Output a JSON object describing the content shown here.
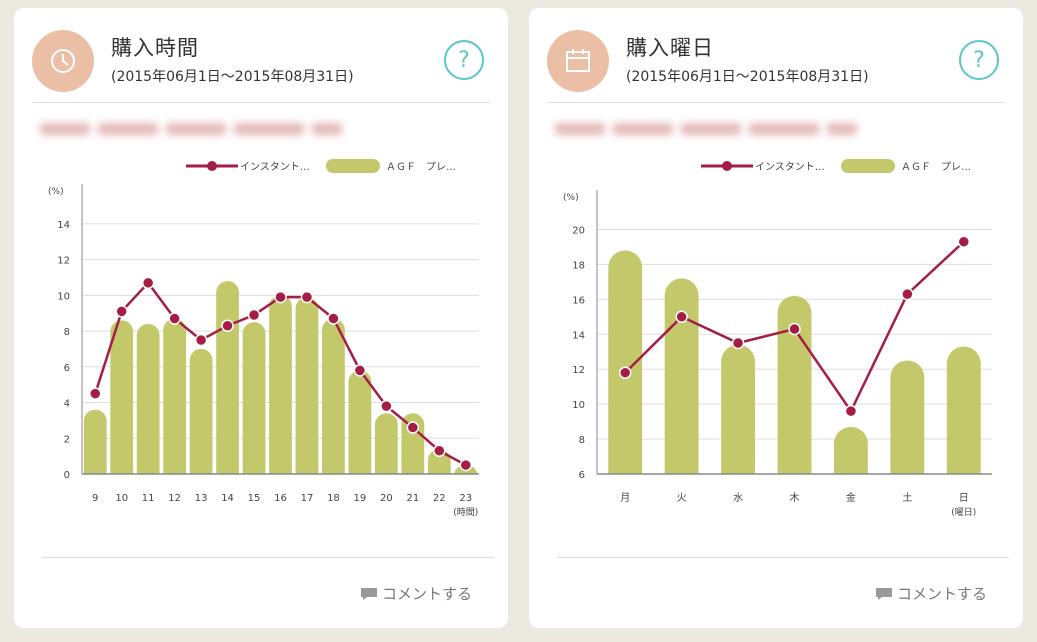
{
  "cards": [
    {
      "title": "購入時間",
      "period": "(2015年06月1日～2015年08月31日)",
      "comment_label": "コメントする"
    },
    {
      "title": "購入曜日",
      "period": "(2015年06月1日～2015年08月31日)",
      "comment_label": "コメントする"
    }
  ],
  "colors": {
    "bar": "#c3c96a",
    "line": "#a51d45",
    "grid": "#dddddd",
    "accent": "#5cc6c9",
    "icon_bg": "#ebbea6"
  },
  "chart_data": [
    {
      "type": "bar",
      "y_unit": "(%)",
      "x_unit": "(時間)",
      "categories": [
        "9",
        "10",
        "11",
        "12",
        "13",
        "14",
        "15",
        "16",
        "17",
        "18",
        "19",
        "20",
        "21",
        "22",
        "23"
      ],
      "ylim": [
        0,
        15
      ],
      "yticks": [
        0,
        2,
        4,
        6,
        8,
        10,
        12,
        14
      ],
      "legend_position": "top-right",
      "series": [
        {
          "name": "インスタント…",
          "kind": "line",
          "values": [
            4.5,
            9.1,
            10.7,
            8.7,
            7.5,
            8.3,
            8.9,
            9.9,
            9.9,
            8.7,
            5.8,
            3.8,
            2.6,
            1.3,
            0.5
          ]
        },
        {
          "name": "ＡＧＦ　プレ…",
          "kind": "bar",
          "values": [
            3.6,
            8.6,
            8.4,
            8.7,
            7.0,
            10.8,
            8.5,
            10.0,
            9.9,
            8.7,
            5.8,
            3.4,
            3.4,
            1.4,
            0.5
          ]
        }
      ]
    },
    {
      "type": "bar",
      "y_unit": "(%)",
      "x_unit": "(曜日)",
      "categories": [
        "月",
        "火",
        "水",
        "木",
        "金",
        "土",
        "日"
      ],
      "ylim": [
        6,
        21
      ],
      "yticks": [
        6,
        8,
        10,
        12,
        14,
        16,
        18,
        20
      ],
      "legend_position": "top-right",
      "series": [
        {
          "name": "インスタント…",
          "kind": "line",
          "values": [
            11.8,
            15.0,
            13.5,
            14.3,
            9.6,
            16.3,
            19.3
          ]
        },
        {
          "name": "ＡＧＦ　プレ…",
          "kind": "bar",
          "values": [
            18.8,
            17.2,
            13.4,
            16.2,
            8.7,
            12.5,
            13.3
          ]
        }
      ]
    }
  ]
}
